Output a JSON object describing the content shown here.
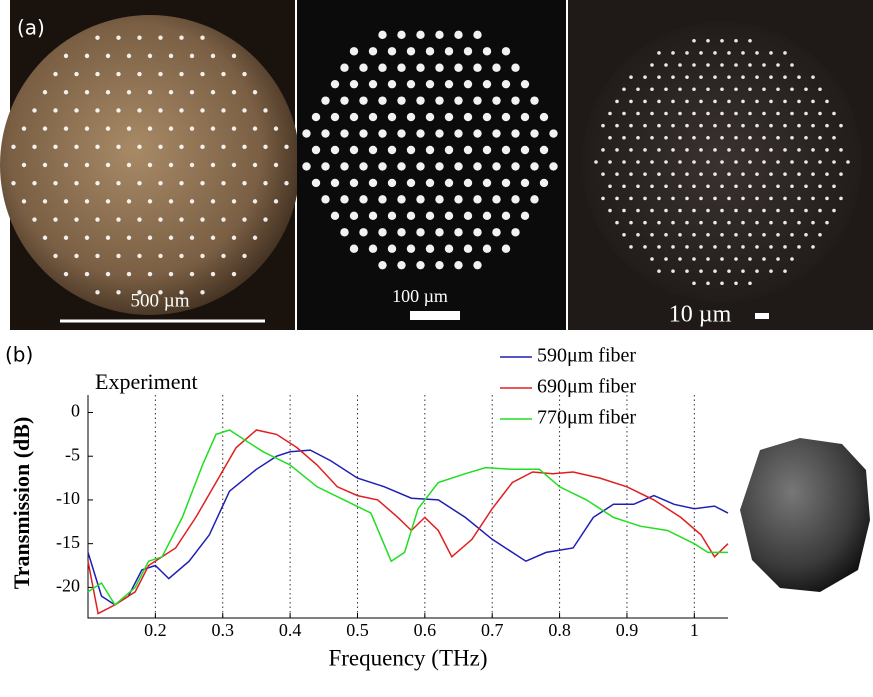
{
  "panels": {
    "a_label": "(a)",
    "b_label": "(b)",
    "scale_labels": [
      "500 µm",
      "100 µm",
      "10 µm"
    ]
  },
  "chart_data": {
    "type": "line",
    "annotation": "Experiment",
    "xlabel": "Frequency (THz)",
    "ylabel": "Transmission (dB)",
    "xlim": [
      0.1,
      1.05
    ],
    "ylim": [
      -23.5,
      2
    ],
    "xticks": [
      0.2,
      0.3,
      0.4,
      0.5,
      0.6,
      0.7,
      0.8,
      0.9,
      1
    ],
    "yticks": [
      0,
      -5,
      -10,
      -15,
      -20
    ],
    "grid": "x-dotted",
    "legend": "upper right",
    "series": [
      {
        "name": "590μm fiber",
        "color": "#1f1fb4",
        "x": [
          0.1,
          0.12,
          0.14,
          0.16,
          0.18,
          0.2,
          0.22,
          0.25,
          0.28,
          0.31,
          0.35,
          0.38,
          0.4,
          0.43,
          0.46,
          0.5,
          0.54,
          0.58,
          0.62,
          0.66,
          0.7,
          0.75,
          0.78,
          0.82,
          0.85,
          0.88,
          0.91,
          0.94,
          0.97,
          1.0,
          1.03,
          1.05
        ],
        "values": [
          -16,
          -21,
          -22,
          -21,
          -18,
          -17.5,
          -19,
          -17,
          -14,
          -9,
          -6.5,
          -5,
          -4.5,
          -4.3,
          -5.5,
          -7.5,
          -8.5,
          -9.8,
          -10,
          -12,
          -14.5,
          -17,
          -16,
          -15.5,
          -12,
          -10.5,
          -10.5,
          -9.5,
          -10.5,
          -11,
          -10.7,
          -11.5
        ]
      },
      {
        "name": "690μm fiber",
        "color": "#e02020",
        "x": [
          0.1,
          0.115,
          0.14,
          0.17,
          0.19,
          0.21,
          0.23,
          0.26,
          0.29,
          0.32,
          0.35,
          0.38,
          0.41,
          0.44,
          0.47,
          0.5,
          0.53,
          0.56,
          0.58,
          0.6,
          0.62,
          0.64,
          0.67,
          0.7,
          0.73,
          0.76,
          0.79,
          0.82,
          0.86,
          0.9,
          0.94,
          0.98,
          1.01,
          1.03,
          1.05
        ],
        "values": [
          -17,
          -23,
          -22,
          -20.5,
          -17.5,
          -16.5,
          -15.5,
          -12,
          -8,
          -4,
          -2,
          -2.5,
          -4,
          -6,
          -8.5,
          -9.5,
          -10,
          -12,
          -13.5,
          -12,
          -13.5,
          -16.5,
          -14.5,
          -11,
          -8,
          -6.8,
          -7,
          -6.8,
          -7.5,
          -8.5,
          -10,
          -12,
          -14,
          -16.5,
          -15
        ]
      },
      {
        "name": "770μm fiber",
        "color": "#22dd22",
        "x": [
          0.1,
          0.12,
          0.14,
          0.17,
          0.19,
          0.21,
          0.24,
          0.27,
          0.29,
          0.31,
          0.33,
          0.36,
          0.4,
          0.44,
          0.48,
          0.52,
          0.55,
          0.57,
          0.59,
          0.62,
          0.66,
          0.69,
          0.73,
          0.77,
          0.8,
          0.84,
          0.88,
          0.92,
          0.96,
          1.0,
          1.02,
          1.05
        ],
        "values": [
          -20.5,
          -19.5,
          -22,
          -20,
          -17,
          -16.5,
          -12,
          -6,
          -2.5,
          -2,
          -3,
          -4.5,
          -6,
          -8.5,
          -10,
          -11.5,
          -17,
          -16,
          -11,
          -8,
          -7,
          -6.3,
          -6.5,
          -6.5,
          -8.5,
          -10,
          -12,
          -13,
          -13.5,
          -15,
          -16,
          -16
        ]
      }
    ]
  }
}
